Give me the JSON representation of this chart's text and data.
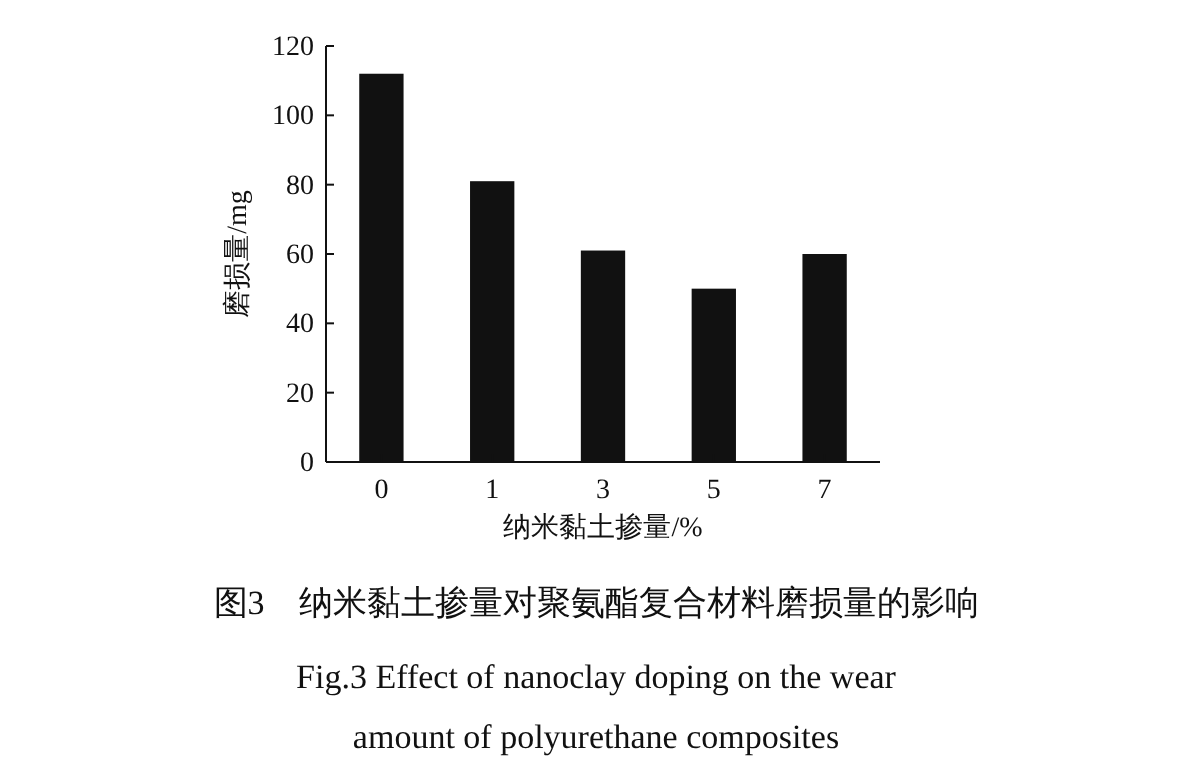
{
  "chart_data": {
    "type": "bar",
    "title": "图3　纳米黏土掺量对聚氨酯复合材料磨损量的影响",
    "subtitle": "Fig.3 Effect of nanoclay doping on the wear amount of polyurethane composites",
    "xlabel": "纳米黏土掺量/%",
    "ylabel": "磨损量/mg",
    "categories": [
      "0",
      "1",
      "3",
      "5",
      "7"
    ],
    "values": [
      112,
      81,
      61,
      50,
      60
    ],
    "color": "#111111",
    "ylim": [
      0,
      120
    ],
    "yticks": [
      0,
      20,
      40,
      60,
      80,
      100,
      120
    ],
    "grid": false
  }
}
